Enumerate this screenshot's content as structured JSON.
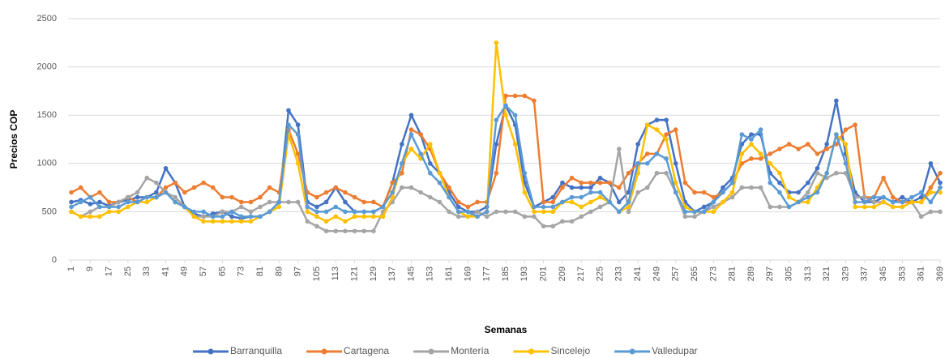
{
  "chart_data": {
    "type": "line",
    "x_label": "Semanas",
    "y_label": "Precios COP",
    "x": [
      1,
      5,
      9,
      13,
      17,
      21,
      25,
      29,
      33,
      37,
      41,
      45,
      49,
      53,
      57,
      61,
      65,
      69,
      73,
      77,
      81,
      85,
      89,
      93,
      97,
      101,
      105,
      109,
      113,
      117,
      121,
      125,
      129,
      133,
      137,
      141,
      145,
      149,
      153,
      157,
      161,
      165,
      169,
      173,
      177,
      181,
      185,
      189,
      193,
      197,
      201,
      205,
      209,
      213,
      217,
      221,
      225,
      229,
      233,
      237,
      241,
      245,
      249,
      253,
      257,
      261,
      265,
      269,
      273,
      277,
      281,
      285,
      289,
      293,
      297,
      301,
      305,
      309,
      313,
      317,
      321,
      325,
      329,
      333,
      337,
      341,
      345,
      349,
      353,
      357,
      361,
      365,
      369
    ],
    "xlim": [
      1,
      369
    ],
    "xticks": [
      1,
      9,
      17,
      25,
      33,
      41,
      49,
      57,
      65,
      73,
      81,
      89,
      97,
      105,
      113,
      121,
      129,
      137,
      145,
      153,
      161,
      169,
      177,
      185,
      193,
      201,
      209,
      217,
      225,
      233,
      241,
      249,
      257,
      265,
      273,
      281,
      289,
      297,
      305,
      313,
      321,
      329,
      337,
      345,
      353,
      361,
      369
    ],
    "ylim": [
      0,
      2500
    ],
    "yticks": [
      0,
      500,
      1000,
      1500,
      2000,
      2500
    ],
    "grid": true,
    "legend": "bottom",
    "series": [
      {
        "name": "Barranquilla",
        "color": "#4472c4",
        "values": [
          600,
          620,
          580,
          600,
          560,
          600,
          620,
          650,
          650,
          700,
          950,
          800,
          550,
          480,
          450,
          480,
          500,
          450,
          430,
          450,
          450,
          500,
          600,
          1550,
          1400,
          600,
          550,
          600,
          750,
          600,
          500,
          500,
          500,
          550,
          800,
          1200,
          1500,
          1300,
          1000,
          900,
          700,
          550,
          500,
          500,
          550,
          1200,
          1600,
          1400,
          800,
          550,
          600,
          650,
          800,
          750,
          750,
          750,
          850,
          800,
          600,
          700,
          1200,
          1400,
          1450,
          1450,
          1000,
          600,
          500,
          550,
          600,
          750,
          850,
          1200,
          1300,
          1300,
          900,
          800,
          700,
          700,
          800,
          950,
          1200,
          1650,
          1100,
          700,
          600,
          600,
          650,
          600,
          650,
          600,
          650,
          1000,
          800
        ]
      },
      {
        "name": "Cartagena",
        "color": "#ed7d31",
        "values": [
          700,
          750,
          650,
          700,
          600,
          600,
          650,
          600,
          650,
          650,
          750,
          800,
          700,
          750,
          800,
          750,
          650,
          650,
          600,
          600,
          650,
          750,
          700,
          1350,
          1100,
          700,
          650,
          700,
          750,
          700,
          650,
          600,
          600,
          550,
          800,
          900,
          1350,
          1300,
          1150,
          900,
          750,
          600,
          550,
          600,
          600,
          900,
          1700,
          1700,
          1700,
          1650,
          600,
          600,
          750,
          850,
          800,
          800,
          800,
          800,
          750,
          900,
          1000,
          1100,
          1100,
          1300,
          1350,
          800,
          700,
          700,
          650,
          700,
          800,
          1000,
          1050,
          1050,
          1100,
          1150,
          1200,
          1150,
          1200,
          1100,
          1150,
          1200,
          1350,
          1400,
          650,
          650,
          850,
          650,
          600,
          600,
          600,
          750,
          900
        ]
      },
      {
        "name": "Montería",
        "color": "#a5a5a5",
        "values": [
          500,
          450,
          500,
          550,
          550,
          600,
          650,
          700,
          850,
          800,
          700,
          650,
          550,
          450,
          450,
          450,
          500,
          500,
          550,
          500,
          550,
          600,
          600,
          600,
          600,
          400,
          350,
          300,
          300,
          300,
          300,
          300,
          300,
          500,
          600,
          750,
          750,
          700,
          650,
          600,
          500,
          450,
          450,
          500,
          450,
          500,
          500,
          500,
          450,
          450,
          350,
          350,
          400,
          400,
          450,
          500,
          550,
          600,
          1150,
          500,
          700,
          750,
          900,
          900,
          700,
          450,
          450,
          500,
          550,
          600,
          650,
          750,
          750,
          750,
          550,
          550,
          550,
          600,
          700,
          900,
          850,
          900,
          900,
          650,
          650,
          600,
          600,
          550,
          550,
          600,
          450,
          500,
          500
        ]
      },
      {
        "name": "Sincelejo",
        "color": "#ffc000",
        "values": [
          500,
          450,
          450,
          450,
          500,
          500,
          550,
          600,
          600,
          650,
          700,
          600,
          550,
          450,
          400,
          400,
          400,
          400,
          400,
          400,
          450,
          500,
          550,
          1300,
          1000,
          500,
          450,
          400,
          450,
          400,
          450,
          450,
          450,
          450,
          650,
          1000,
          1150,
          1050,
          1200,
          900,
          650,
          500,
          450,
          450,
          500,
          2250,
          1500,
          1200,
          700,
          500,
          500,
          500,
          600,
          600,
          550,
          600,
          650,
          600,
          500,
          550,
          900,
          1400,
          1350,
          1250,
          800,
          550,
          500,
          500,
          500,
          600,
          700,
          1100,
          1200,
          1100,
          1000,
          900,
          650,
          600,
          600,
          750,
          900,
          1300,
          1200,
          550,
          550,
          550,
          600,
          550,
          550,
          600,
          600,
          700,
          700
        ]
      },
      {
        "name": "Valledupar",
        "color": "#5b9bd5",
        "values": [
          550,
          600,
          650,
          550,
          550,
          550,
          600,
          600,
          650,
          650,
          700,
          600,
          550,
          500,
          500,
          450,
          450,
          500,
          450,
          450,
          450,
          500,
          600,
          1400,
          1300,
          550,
          500,
          500,
          550,
          500,
          500,
          500,
          500,
          550,
          700,
          1000,
          1300,
          1100,
          900,
          800,
          650,
          500,
          500,
          450,
          500,
          1450,
          1600,
          1500,
          900,
          550,
          550,
          550,
          600,
          650,
          650,
          700,
          700,
          600,
          500,
          600,
          1000,
          1000,
          1100,
          1050,
          700,
          500,
          500,
          500,
          600,
          700,
          800,
          1300,
          1250,
          1350,
          800,
          700,
          550,
          600,
          650,
          700,
          900,
          1300,
          1000,
          600,
          600,
          650,
          650,
          600,
          600,
          650,
          700,
          600,
          750
        ]
      }
    ]
  }
}
